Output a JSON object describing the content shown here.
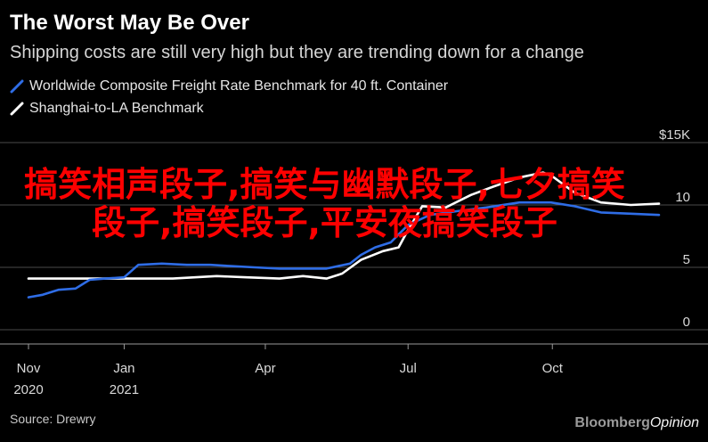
{
  "header": {
    "title": "The Worst May Be Over",
    "subtitle": "Shipping costs are still very high but they are trending down for a change"
  },
  "legend": [
    {
      "label": "Worldwide Composite Freight Rate Benchmark for 40 ft. Container",
      "color": "#2f6de6"
    },
    {
      "label": "Shanghai-to-LA Benchmark",
      "color": "#ffffff"
    }
  ],
  "footer": {
    "source": "Source: Drewry",
    "brand_a": "Bloomberg",
    "brand_b": "Opinion"
  },
  "overlay": {
    "text": "搞笑相声段子,搞笑与幽默段子,七夕搞笑段子,搞笑段子,平安夜搞笑段子"
  },
  "colors": {
    "background": "#000000",
    "grid": "#4a4a4a",
    "overlay_text": "#ff0000"
  },
  "chart_data": {
    "type": "line",
    "y_axis": {
      "ylim": [
        0,
        15
      ],
      "ticks": [
        {
          "value": 15,
          "label": "$15K"
        },
        {
          "value": 10,
          "label": "10"
        },
        {
          "value": 5,
          "label": "5"
        },
        {
          "value": 0,
          "label": "0"
        }
      ],
      "position": "right"
    },
    "x_axis": {
      "start": "2020-11-01",
      "end": "2021-12-08",
      "ticks": [
        {
          "date": "2020-11-01",
          "line1": "Nov",
          "line2": "2020"
        },
        {
          "date": "2021-01-01",
          "line1": "Jan",
          "line2": "2021"
        },
        {
          "date": "2021-04-01",
          "line1": "Apr",
          "line2": ""
        },
        {
          "date": "2021-07-01",
          "line1": "Jul",
          "line2": ""
        },
        {
          "date": "2021-10-01",
          "line1": "Oct",
          "line2": ""
        }
      ]
    },
    "grid": true,
    "series": [
      {
        "name": "Worldwide Composite Freight Rate Benchmark for 40 ft. Container",
        "color": "#2f6de6",
        "points": [
          [
            "2020-11-01",
            2.6
          ],
          [
            "2020-11-10",
            2.8
          ],
          [
            "2020-11-20",
            3.2
          ],
          [
            "2020-12-01",
            3.3
          ],
          [
            "2020-12-10",
            4.0
          ],
          [
            "2020-12-20",
            4.1
          ],
          [
            "2021-01-01",
            4.2
          ],
          [
            "2021-01-10",
            5.2
          ],
          [
            "2021-01-25",
            5.3
          ],
          [
            "2021-02-10",
            5.2
          ],
          [
            "2021-02-25",
            5.2
          ],
          [
            "2021-03-10",
            5.1
          ],
          [
            "2021-03-25",
            5.0
          ],
          [
            "2021-04-10",
            4.9
          ],
          [
            "2021-04-25",
            4.9
          ],
          [
            "2021-05-10",
            4.9
          ],
          [
            "2021-05-25",
            5.3
          ],
          [
            "2021-06-01",
            6.0
          ],
          [
            "2021-06-10",
            6.6
          ],
          [
            "2021-06-20",
            7.0
          ],
          [
            "2021-07-01",
            8.4
          ],
          [
            "2021-07-15",
            9.2
          ],
          [
            "2021-08-01",
            9.5
          ],
          [
            "2021-08-20",
            9.8
          ],
          [
            "2021-09-10",
            10.2
          ],
          [
            "2021-09-30",
            10.2
          ],
          [
            "2021-10-15",
            9.9
          ],
          [
            "2021-11-01",
            9.4
          ],
          [
            "2021-11-20",
            9.3
          ],
          [
            "2021-12-08",
            9.2
          ]
        ]
      },
      {
        "name": "Shanghai-to-LA Benchmark",
        "color": "#ffffff",
        "points": [
          [
            "2020-11-01",
            4.1
          ],
          [
            "2020-12-01",
            4.1
          ],
          [
            "2021-01-01",
            4.1
          ],
          [
            "2021-02-01",
            4.1
          ],
          [
            "2021-03-01",
            4.3
          ],
          [
            "2021-03-20",
            4.2
          ],
          [
            "2021-04-10",
            4.1
          ],
          [
            "2021-04-25",
            4.3
          ],
          [
            "2021-05-10",
            4.1
          ],
          [
            "2021-05-20",
            4.5
          ],
          [
            "2021-06-01",
            5.6
          ],
          [
            "2021-06-15",
            6.3
          ],
          [
            "2021-06-25",
            6.6
          ],
          [
            "2021-07-01",
            8.0
          ],
          [
            "2021-07-10",
            9.9
          ],
          [
            "2021-07-25",
            9.8
          ],
          [
            "2021-08-10",
            10.8
          ],
          [
            "2021-08-25",
            11.5
          ],
          [
            "2021-09-10",
            12.2
          ],
          [
            "2021-09-25",
            12.6
          ],
          [
            "2021-10-01",
            12.3
          ],
          [
            "2021-10-15",
            11.0
          ],
          [
            "2021-11-01",
            10.2
          ],
          [
            "2021-11-20",
            10.0
          ],
          [
            "2021-12-08",
            10.1
          ]
        ]
      }
    ]
  }
}
